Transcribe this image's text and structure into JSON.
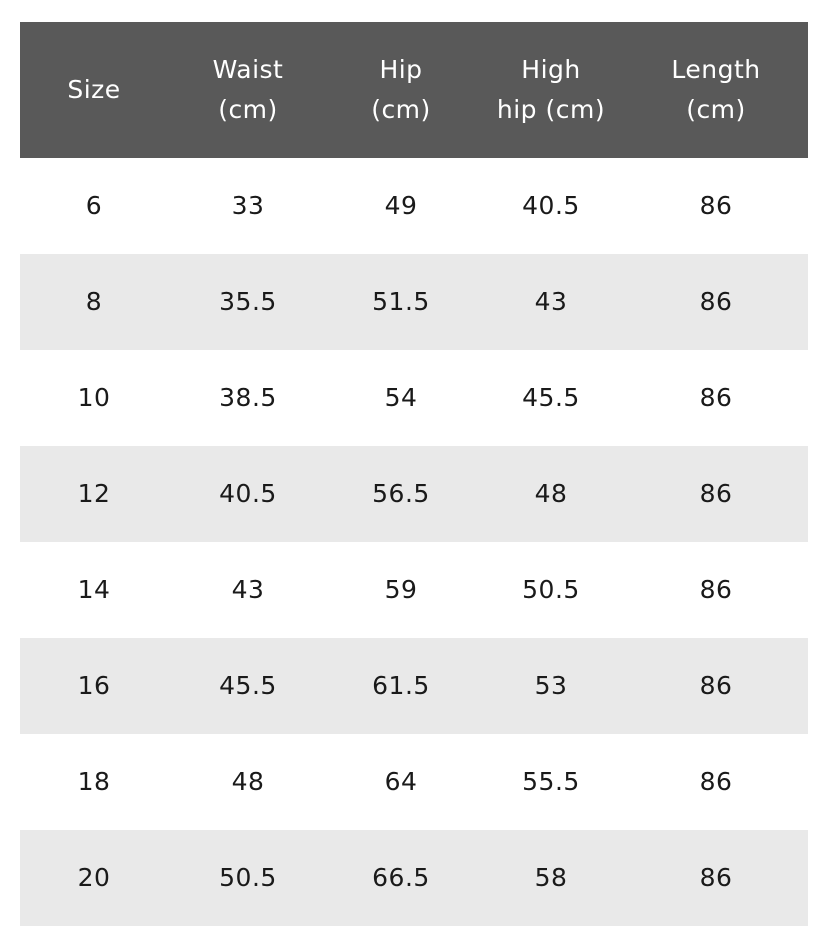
{
  "table": {
    "header": [
      [
        "Size"
      ],
      [
        "Waist",
        "(cm)"
      ],
      [
        "Hip",
        "(cm)"
      ],
      [
        "High",
        "hip (cm)"
      ],
      [
        "Length",
        "(cm)"
      ]
    ],
    "rows": [
      [
        "6",
        "33",
        "49",
        "40.5",
        "86"
      ],
      [
        "8",
        "35.5",
        "51.5",
        "43",
        "86"
      ],
      [
        "10",
        "38.5",
        "54",
        "45.5",
        "86"
      ],
      [
        "12",
        "40.5",
        "56.5",
        "48",
        "86"
      ],
      [
        "14",
        "43",
        "59",
        "50.5",
        "86"
      ],
      [
        "16",
        "45.5",
        "61.5",
        "53",
        "86"
      ],
      [
        "18",
        "48",
        "64",
        "55.5",
        "86"
      ],
      [
        "20",
        "50.5",
        "66.5",
        "58",
        "86"
      ]
    ]
  }
}
